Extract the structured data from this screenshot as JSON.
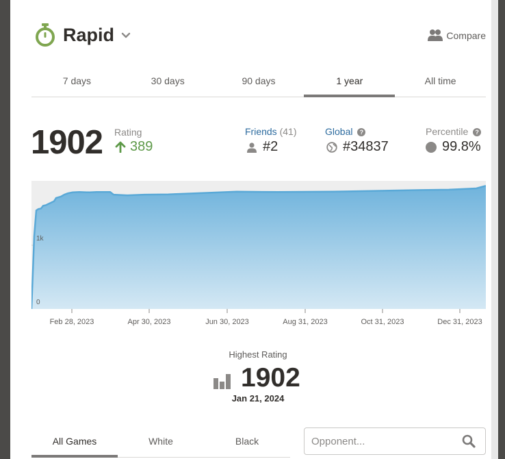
{
  "header": {
    "title": "Rapid",
    "compare_label": "Compare"
  },
  "tabs": [
    {
      "label": "7 days"
    },
    {
      "label": "30 days"
    },
    {
      "label": "90 days"
    },
    {
      "label": "1 year",
      "active": true
    },
    {
      "label": "All time"
    }
  ],
  "stats": {
    "rating": "1902",
    "rating_label": "Rating",
    "rating_change": "389",
    "friends_label": "Friends",
    "friends_count": "(41)",
    "friends_rank": "#2",
    "global_label": "Global",
    "global_rank": "#34837",
    "percentile_label": "Percentile",
    "percentile": "99.8%"
  },
  "chart_data": {
    "type": "area",
    "y_ticks": [
      {
        "label": "1k",
        "value": 1000
      },
      {
        "label": "0",
        "value": 0
      }
    ],
    "x_ticks": [
      "Feb 28, 2023",
      "Apr 30, 2023",
      "Jun 30, 2023",
      "Aug 31, 2023",
      "Oct 31, 2023",
      "Dec 31, 2023"
    ],
    "ylim": [
      0,
      1950
    ],
    "series": [
      {
        "points": [
          [
            0,
            0
          ],
          [
            4,
            1110
          ],
          [
            7,
            1500
          ],
          [
            10,
            1520
          ],
          [
            14,
            1530
          ],
          [
            17,
            1570
          ],
          [
            21,
            1580
          ],
          [
            24,
            1595
          ],
          [
            29,
            1620
          ],
          [
            33,
            1640
          ],
          [
            36,
            1690
          ],
          [
            43,
            1710
          ],
          [
            48,
            1740
          ],
          [
            53,
            1760
          ],
          [
            60,
            1775
          ],
          [
            70,
            1780
          ],
          [
            85,
            1775
          ],
          [
            95,
            1780
          ],
          [
            115,
            1780
          ],
          [
            120,
            1740
          ],
          [
            140,
            1730
          ],
          [
            165,
            1740
          ],
          [
            200,
            1745
          ],
          [
            225,
            1755
          ],
          [
            300,
            1785
          ],
          [
            360,
            1780
          ],
          [
            440,
            1785
          ],
          [
            570,
            1810
          ],
          [
            610,
            1815
          ],
          [
            650,
            1835
          ],
          [
            664,
            1875
          ]
        ]
      }
    ],
    "colors": {
      "fill_top": "#6fb3dc",
      "fill_bottom": "#d4e8f4",
      "line": "#5aa9d7"
    }
  },
  "highest": {
    "label": "Highest Rating",
    "value": "1902",
    "date": "Jan 21, 2024"
  },
  "game_tabs": [
    {
      "label": "All Games",
      "active": true
    },
    {
      "label": "White"
    },
    {
      "label": "Black"
    }
  ],
  "opponent": {
    "placeholder": "Opponent..."
  }
}
